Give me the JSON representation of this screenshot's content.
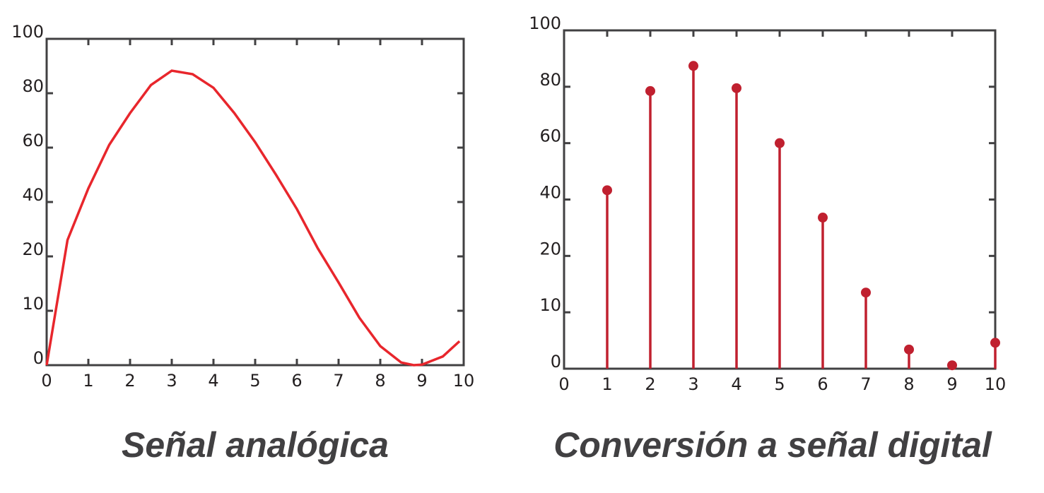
{
  "chart_data": [
    {
      "type": "line",
      "title": "Señal analógica",
      "color": "#e8262c",
      "x": [
        0,
        0.5,
        1,
        1.5,
        2,
        2.5,
        3,
        3.5,
        4,
        4.5,
        5,
        5.5,
        6,
        6.5,
        7,
        7.5,
        8,
        8.5,
        8.8,
        9,
        9.5,
        9.9
      ],
      "values": [
        0,
        26,
        45,
        61,
        72.7,
        83,
        88.3,
        87,
        82,
        72.7,
        62,
        50,
        37.4,
        23,
        15.2,
        8.7,
        3.5,
        0.5,
        0,
        0.1,
        1.6,
        4.4
      ],
      "xlim": [
        0,
        10
      ],
      "xticks": [
        0,
        1,
        2,
        3,
        4,
        5,
        6,
        7,
        8,
        9,
        10
      ],
      "ylim": [
        0,
        100
      ],
      "yticks": [
        0,
        10,
        20,
        40,
        60,
        80,
        100
      ]
    },
    {
      "type": "stem",
      "title": "Conversión a señal digital",
      "color": "#c0202f",
      "x": [
        1,
        2,
        3,
        4,
        5,
        6,
        7,
        8,
        9,
        10
      ],
      "values": [
        43.3,
        78.5,
        87.4,
        79.5,
        60,
        33.6,
        13.5,
        3.4,
        0.6,
        4.6
      ],
      "xlim": [
        0,
        10
      ],
      "xticks": [
        0,
        1,
        2,
        3,
        4,
        5,
        6,
        7,
        8,
        9,
        10
      ],
      "ylim": [
        0,
        100
      ],
      "yticks": [
        0,
        10,
        20,
        40,
        60,
        80,
        100
      ]
    }
  ]
}
